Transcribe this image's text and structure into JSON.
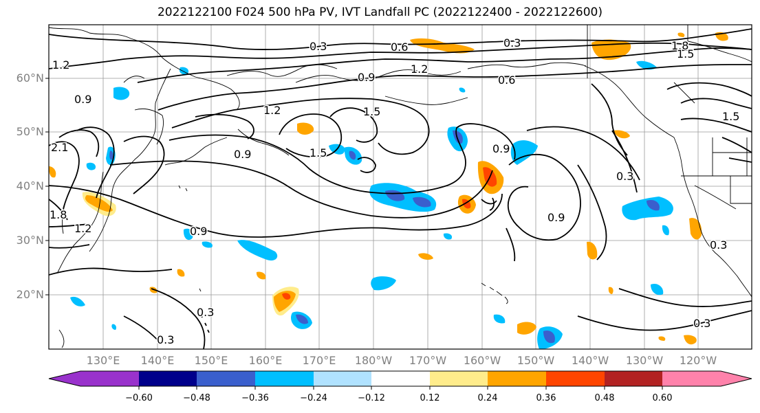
{
  "title": "2022122100 F024 500 hPa PV, IVT Landfall PC (2022122400 - 2022122600)",
  "lat_labels": [
    "60°N",
    "50°N",
    "40°N",
    "30°N",
    "20°N"
  ],
  "lon_labels": [
    "130°E",
    "140°E",
    "150°E",
    "160°E",
    "170°E",
    "180°W",
    "170°W",
    "160°W",
    "150°W",
    "140°W",
    "130°W",
    "120°W"
  ],
  "contour_labels": [
    "0.3",
    "0.6",
    "0.3",
    "1.8",
    "1.5",
    "1.2",
    "0.9",
    "0.6",
    "1.2",
    "0.9",
    "1.5",
    "1.5",
    "0.9",
    "0.9",
    "1.5",
    "0.3",
    "0.9",
    "2.1",
    "1.8",
    "1.2",
    "0.9",
    "0.3",
    "0.3",
    "0.3",
    "0.3",
    "1.2"
  ],
  "colorbar": {
    "ticks": [
      "−0.60",
      "−0.48",
      "−0.36",
      "−0.24",
      "−0.12",
      "0.12",
      "0.24",
      "0.36",
      "0.48",
      "0.60"
    ],
    "colors": [
      "#9932CC",
      "#00008B",
      "#3A5FCD",
      "#00BFFF",
      "#B0E2FF",
      "#FFFFFF",
      "#FFEC8B",
      "#FFA500",
      "#FF4500",
      "#B22222",
      "#FF82AB"
    ]
  },
  "colors": {
    "contour": "#000000",
    "coastline": "#000000",
    "gridline": "#999999",
    "axis_label": "#808080"
  }
}
